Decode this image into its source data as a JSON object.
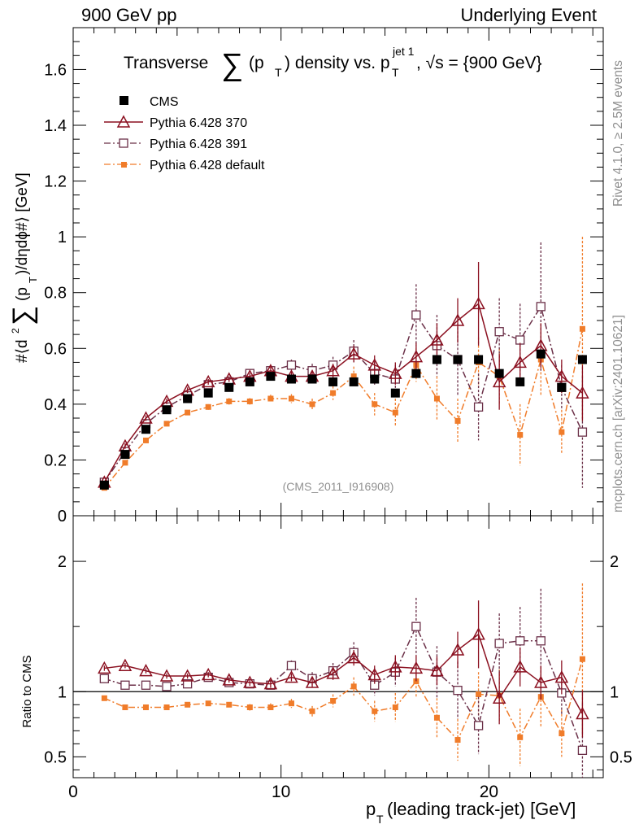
{
  "header": {
    "left_label": "900 GeV pp",
    "right_label": "Underlying Event",
    "side_rivet": "Rivet 4.1.0, ≥ 2.5M events",
    "side_mcplots": "mcplots.cern.ch [arXiv:2401.10621]"
  },
  "chart_data": [
    {
      "id": "main-panel",
      "type": "scatter",
      "title": "Transverse ∑(pT) density vs. pT^jet 1, √s = {900 GeV}",
      "title_parts": {
        "t1": "Transverse",
        "t2": "(p",
        "t3": "T",
        "t4": ") density vs. p",
        "t5": "T",
        "t6": "jet 1",
        "t7": ", √s = {900 GeV}"
      },
      "ylabel_parts": {
        "a": "#⟨d",
        "b": "2",
        "c": "(p",
        "d": "T",
        "e": ")/dηdϕ#⟩ [GeV]"
      },
      "analysis_tag": "(CMS_2011_I916908)",
      "xlim": [
        0,
        25.5
      ],
      "ylim": [
        0,
        1.75
      ],
      "yticks": [
        0,
        0.2,
        0.4,
        0.6,
        0.8,
        1,
        1.2,
        1.4,
        1.6
      ],
      "ytick_labels": [
        "0",
        "0.2",
        "0.4",
        "0.6",
        "0.8",
        "1",
        "1.2",
        "1.4",
        "1.6"
      ],
      "legend_position": "top-left",
      "series": [
        {
          "name": "CMS",
          "color": "#000000",
          "marker": "filled-square",
          "line": "none",
          "x": [
            1.5,
            2.5,
            3.5,
            4.5,
            5.5,
            6.5,
            7.5,
            8.5,
            9.5,
            10.5,
            11.5,
            12.5,
            13.5,
            14.5,
            15.5,
            16.5,
            17.5,
            18.5,
            19.5,
            20.5,
            21.5,
            22.5,
            23.5,
            24.5
          ],
          "y": [
            0.11,
            0.22,
            0.31,
            0.38,
            0.42,
            0.44,
            0.46,
            0.48,
            0.5,
            0.49,
            0.49,
            0.48,
            0.48,
            0.49,
            0.44,
            0.51,
            0.56,
            0.56,
            0.56,
            0.51,
            0.48,
            0.58,
            0.46,
            0.56
          ],
          "err": [
            0,
            0,
            0,
            0,
            0,
            0,
            0,
            0,
            0,
            0,
            0,
            0,
            0,
            0,
            0,
            0,
            0,
            0,
            0,
            0,
            0,
            0,
            0,
            0
          ]
        },
        {
          "name": "Pythia 6.428 370",
          "color": "#8b1020",
          "marker": "open-triangle",
          "line": "solid",
          "x": [
            1.5,
            2.5,
            3.5,
            4.5,
            5.5,
            6.5,
            7.5,
            8.5,
            9.5,
            10.5,
            11.5,
            12.5,
            13.5,
            14.5,
            15.5,
            16.5,
            17.5,
            18.5,
            19.5,
            20.5,
            21.5,
            22.5,
            23.5,
            24.5
          ],
          "y": [
            0.12,
            0.25,
            0.35,
            0.41,
            0.45,
            0.48,
            0.49,
            0.5,
            0.52,
            0.5,
            0.5,
            0.52,
            0.58,
            0.54,
            0.51,
            0.57,
            0.63,
            0.7,
            0.76,
            0.48,
            0.55,
            0.61,
            0.5,
            0.44
          ],
          "err": [
            0.005,
            0.01,
            0.01,
            0.01,
            0.01,
            0.01,
            0.01,
            0.012,
            0.014,
            0.018,
            0.02,
            0.025,
            0.03,
            0.035,
            0.04,
            0.05,
            0.06,
            0.08,
            0.15,
            0.1,
            0.07,
            0.08,
            0.06,
            0.1
          ]
        },
        {
          "name": "Pythia 6.428 391",
          "color": "#6b3048",
          "marker": "open-square",
          "line": "dash-dot",
          "x": [
            1.5,
            2.5,
            3.5,
            4.5,
            5.5,
            6.5,
            7.5,
            8.5,
            9.5,
            10.5,
            11.5,
            12.5,
            13.5,
            14.5,
            15.5,
            16.5,
            17.5,
            18.5,
            19.5,
            20.5,
            21.5,
            22.5,
            23.5,
            24.5
          ],
          "y": [
            0.12,
            0.23,
            0.33,
            0.39,
            0.43,
            0.47,
            0.48,
            0.51,
            0.52,
            0.54,
            0.52,
            0.54,
            0.59,
            0.51,
            0.49,
            0.72,
            0.61,
            0.56,
            0.39,
            0.66,
            0.63,
            0.75,
            0.46,
            0.3
          ],
          "err": [
            0.005,
            0.01,
            0.01,
            0.01,
            0.01,
            0.01,
            0.012,
            0.015,
            0.015,
            0.02,
            0.025,
            0.03,
            0.04,
            0.04,
            0.05,
            0.11,
            0.11,
            0.13,
            0.12,
            0.12,
            0.13,
            0.23,
            0.08,
            0.2
          ]
        },
        {
          "name": "Pythia 6.428 default",
          "color": "#f07c2a",
          "marker": "filled-small-square",
          "line": "dash-dot",
          "x": [
            1.5,
            2.5,
            3.5,
            4.5,
            5.5,
            6.5,
            7.5,
            8.5,
            9.5,
            10.5,
            11.5,
            12.5,
            13.5,
            14.5,
            15.5,
            16.5,
            17.5,
            18.5,
            19.5,
            20.5,
            21.5,
            22.5,
            23.5,
            24.5
          ],
          "y": [
            0.1,
            0.19,
            0.27,
            0.33,
            0.37,
            0.39,
            0.41,
            0.41,
            0.42,
            0.42,
            0.4,
            0.44,
            0.5,
            0.4,
            0.37,
            0.54,
            0.42,
            0.34,
            0.55,
            0.5,
            0.29,
            0.56,
            0.3,
            0.67
          ],
          "err": [
            0.005,
            0.008,
            0.008,
            0.008,
            0.008,
            0.01,
            0.012,
            0.012,
            0.014,
            0.016,
            0.02,
            0.025,
            0.035,
            0.04,
            0.05,
            0.06,
            0.08,
            0.08,
            0.09,
            0.1,
            0.11,
            0.13,
            0.08,
            0.33
          ]
        }
      ]
    },
    {
      "id": "ratio-panel",
      "type": "scatter",
      "xlabel_parts": {
        "a": "p",
        "b": "T",
        "c": " (leading track-jet) [GeV]"
      },
      "ylabel": "Ratio to CMS",
      "xlim": [
        0,
        25.5
      ],
      "ylim": [
        0.34,
        2.35
      ],
      "xticks": [
        0,
        10,
        20
      ],
      "xtick_labels": [
        "0",
        "10",
        "20"
      ],
      "yticks": [
        0.5,
        1,
        2
      ],
      "ytick_labels": [
        "0.5",
        "1",
        "2"
      ],
      "reference_line": 1,
      "series": [
        {
          "name": "Pythia 6.428 370",
          "x": [
            1.5,
            2.5,
            3.5,
            4.5,
            5.5,
            6.5,
            7.5,
            8.5,
            9.5,
            10.5,
            11.5,
            12.5,
            13.5,
            14.5,
            15.5,
            16.5,
            17.5,
            18.5,
            19.5,
            20.5,
            21.5,
            22.5,
            23.5,
            24.5
          ],
          "y": [
            1.18,
            1.2,
            1.16,
            1.12,
            1.12,
            1.13,
            1.09,
            1.07,
            1.06,
            1.11,
            1.07,
            1.14,
            1.26,
            1.13,
            1.19,
            1.18,
            1.16,
            1.32,
            1.44,
            0.95,
            1.19,
            1.07,
            1.11,
            0.83
          ],
          "err": [
            0.02,
            0.02,
            0.02,
            0.02,
            0.02,
            0.02,
            0.02,
            0.025,
            0.03,
            0.03,
            0.04,
            0.05,
            0.06,
            0.07,
            0.09,
            0.1,
            0.11,
            0.14,
            0.26,
            0.2,
            0.15,
            0.13,
            0.13,
            0.18
          ]
        },
        {
          "name": "Pythia 6.428 391",
          "x": [
            1.5,
            2.5,
            3.5,
            4.5,
            5.5,
            6.5,
            7.5,
            8.5,
            9.5,
            10.5,
            11.5,
            12.5,
            13.5,
            14.5,
            15.5,
            16.5,
            17.5,
            18.5,
            19.5,
            20.5,
            21.5,
            22.5,
            23.5,
            24.5
          ],
          "y": [
            1.1,
            1.05,
            1.05,
            1.04,
            1.06,
            1.11,
            1.07,
            1.06,
            1.05,
            1.2,
            1.1,
            1.16,
            1.3,
            1.05,
            1.15,
            1.5,
            1.15,
            1.01,
            0.74,
            1.37,
            1.39,
            1.39,
            0.99,
            0.55
          ],
          "err": [
            0.02,
            0.02,
            0.02,
            0.02,
            0.02,
            0.02,
            0.025,
            0.03,
            0.03,
            0.04,
            0.05,
            0.06,
            0.08,
            0.08,
            0.11,
            0.22,
            0.2,
            0.22,
            0.22,
            0.23,
            0.26,
            0.4,
            0.17,
            0.36
          ]
        },
        {
          "name": "Pythia 6.428 default",
          "x": [
            1.5,
            2.5,
            3.5,
            4.5,
            5.5,
            6.5,
            7.5,
            8.5,
            9.5,
            10.5,
            11.5,
            12.5,
            13.5,
            14.5,
            15.5,
            16.5,
            17.5,
            18.5,
            19.5,
            20.5,
            21.5,
            22.5,
            23.5,
            24.5
          ],
          "y": [
            0.95,
            0.88,
            0.88,
            0.88,
            0.9,
            0.91,
            0.9,
            0.88,
            0.88,
            0.91,
            0.85,
            0.93,
            1.04,
            0.85,
            0.88,
            1.08,
            0.8,
            0.63,
            0.98,
            0.97,
            0.65,
            0.96,
            0.68,
            1.25
          ],
          "err": [
            0.015,
            0.015,
            0.015,
            0.015,
            0.015,
            0.02,
            0.02,
            0.025,
            0.03,
            0.035,
            0.04,
            0.05,
            0.07,
            0.08,
            0.11,
            0.12,
            0.15,
            0.16,
            0.17,
            0.2,
            0.22,
            0.23,
            0.18,
            0.58
          ]
        }
      ]
    }
  ]
}
